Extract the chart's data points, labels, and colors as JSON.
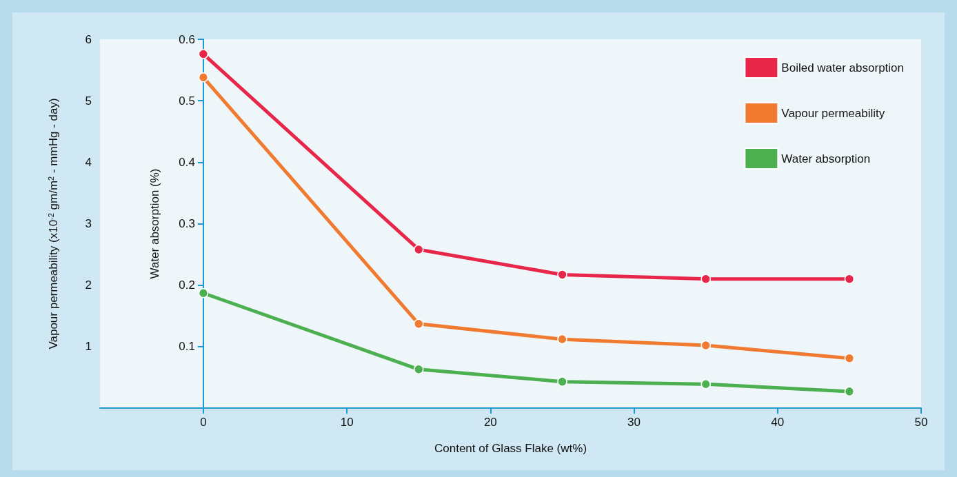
{
  "chart_data": {
    "type": "line",
    "xlabel": "Content of Glass Flake (wt%)",
    "ylabel": "Vapour permeability (x10$^{-2}$ gm/m$^{2}$ - mmHg - day)",
    "y2label": "Water absorption (%)",
    "x": [
      0,
      15,
      25,
      35,
      45
    ],
    "xlim": [
      -7.2,
      50
    ],
    "xticks": [
      0,
      10,
      20,
      30,
      40,
      50
    ],
    "ylim": [
      0,
      6
    ],
    "yticks": [
      1,
      2,
      3,
      4,
      5,
      6
    ],
    "y2lim": [
      0,
      0.6
    ],
    "y2ticks": [
      0.1,
      0.2,
      0.3,
      0.4,
      0.5,
      0.6
    ],
    "series": [
      {
        "name": "Boiled water absorption",
        "color": "#e8264a",
        "axis": "y2",
        "values": [
          0.576,
          0.258,
          0.217,
          0.21,
          0.21
        ]
      },
      {
        "name": "Vapour permeability",
        "color": "#f07a30",
        "values": [
          5.38,
          1.37,
          1.12,
          1.02,
          0.81
        ]
      },
      {
        "name": "Water absorption",
        "color": "#4caf50",
        "axis": "y2",
        "values": [
          0.187,
          0.063,
          0.043,
          0.039,
          0.027
        ]
      }
    ],
    "marker": "circle",
    "line_style": "solid",
    "grid": false,
    "legend": "top right"
  }
}
